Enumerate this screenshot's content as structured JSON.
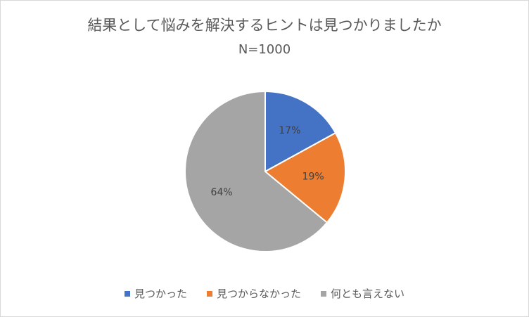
{
  "chart_data": {
    "type": "pie",
    "title": "結果として悩みを解決するヒントは見つかりましたか",
    "subtitle": "N=1000",
    "categories": [
      "見つかった",
      "見つからなかった",
      "何とも言えない"
    ],
    "values": [
      17,
      19,
      64
    ],
    "labels": [
      "17%",
      "19%",
      "64%"
    ],
    "colors": [
      "#4472c4",
      "#ed7d31",
      "#a5a5a5"
    ],
    "legend_position": "bottom"
  }
}
